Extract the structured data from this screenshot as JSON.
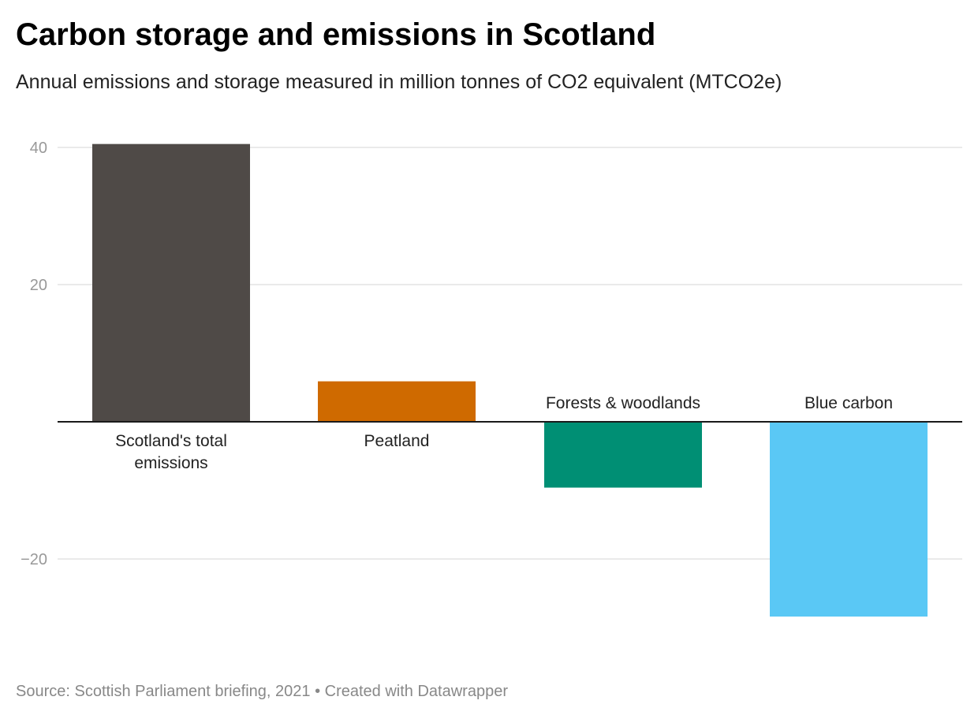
{
  "chart_data": {
    "type": "bar",
    "title": "Carbon storage and emissions in Scotland",
    "subtitle": "Annual emissions and storage measured in million tonnes of CO2 equivalent (MTCO2e)",
    "categories": [
      "Scotland's total emissions",
      "Peatland",
      "Forests & woodlands",
      "Blue carbon"
    ],
    "category_label_lines": [
      [
        "Scotland's total",
        "emissions"
      ],
      [
        "Peatland"
      ],
      [
        "Forests & woodlands"
      ],
      [
        "Blue carbon"
      ]
    ],
    "values": [
      40.5,
      5.9,
      -9.6,
      -28.4
    ],
    "colors": [
      "#4f4a47",
      "#cf6a00",
      "#008f74",
      "#5ac8f5"
    ],
    "ylim": [
      -30,
      42
    ],
    "yticks": [
      40,
      20,
      -20
    ],
    "ytick_labels": [
      "40",
      "20",
      "−20"
    ],
    "grid": true,
    "xlabel": "",
    "ylabel": ""
  },
  "footer": {
    "source": "Source: Scottish Parliament briefing, 2021 • Created with Datawrapper"
  }
}
